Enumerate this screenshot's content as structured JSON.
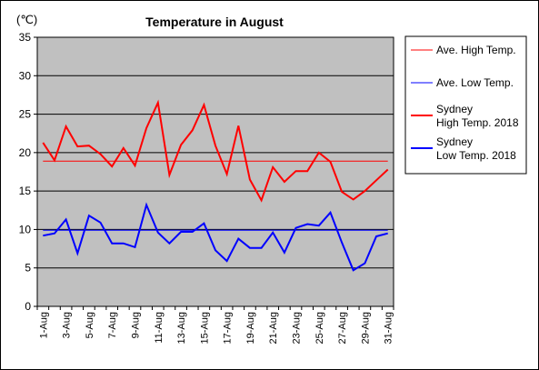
{
  "chart_data": {
    "type": "line",
    "title": "Temperature in August",
    "unit_label": "(℃)",
    "ylim": [
      0,
      35
    ],
    "y_ticks": [
      "0",
      "5",
      "10",
      "15",
      "20",
      "25",
      "30",
      "35"
    ],
    "x": [
      1,
      2,
      3,
      4,
      5,
      6,
      7,
      8,
      9,
      10,
      11,
      12,
      13,
      14,
      15,
      16,
      17,
      18,
      19,
      20,
      21,
      22,
      23,
      24,
      25,
      26,
      27,
      28,
      29,
      30,
      31
    ],
    "x_tick_labels": [
      "1-Aug",
      "3-Aug",
      "5-Aug",
      "7-Aug",
      "9-Aug",
      "11-Aug",
      "13-Aug",
      "15-Aug",
      "17-Aug",
      "19-Aug",
      "21-Aug",
      "23-Aug",
      "25-Aug",
      "27-Aug",
      "29-Aug",
      "31-Aug"
    ],
    "x_tick_days": [
      1,
      3,
      5,
      7,
      9,
      11,
      13,
      15,
      17,
      19,
      21,
      23,
      25,
      27,
      29,
      31
    ],
    "grid": true,
    "plot_background": "#c0c0c0",
    "legend_position": "right",
    "series": [
      {
        "name": "Ave. High Temp.",
        "color": "#ff0000",
        "width": 1,
        "values": [
          18.9,
          18.9,
          18.9,
          18.9,
          18.9,
          18.9,
          18.9,
          18.9,
          18.9,
          18.9,
          18.9,
          18.9,
          18.9,
          18.9,
          18.9,
          18.9,
          18.9,
          18.9,
          18.9,
          18.9,
          18.9,
          18.9,
          18.9,
          18.9,
          18.9,
          18.9,
          18.9,
          18.9,
          18.9,
          18.9,
          18.9
        ]
      },
      {
        "name": "Ave. Low Temp.",
        "color": "#0000ff",
        "width": 1,
        "values": [
          9.9,
          9.9,
          9.9,
          9.9,
          9.9,
          9.9,
          9.9,
          9.9,
          9.9,
          9.9,
          9.9,
          9.9,
          9.9,
          9.9,
          9.9,
          9.9,
          9.9,
          9.9,
          9.9,
          9.9,
          9.9,
          9.9,
          9.9,
          9.9,
          9.9,
          9.9,
          9.9,
          9.9,
          9.9,
          9.9,
          9.9
        ]
      },
      {
        "name": "Sydney\nHigh Temp. 2018",
        "color": "#ff0000",
        "width": 2,
        "values": [
          21.3,
          19.0,
          23.4,
          20.8,
          20.9,
          19.8,
          18.2,
          20.6,
          18.3,
          23.2,
          26.5,
          17.1,
          21.0,
          22.9,
          26.2,
          20.9,
          17.2,
          23.5,
          16.5,
          13.8,
          18.1,
          16.2,
          17.6,
          17.6,
          20.0,
          18.8,
          14.9,
          13.9,
          15.0,
          16.4,
          17.8
        ]
      },
      {
        "name": "Sydney\nLow Temp. 2018",
        "color": "#0000ff",
        "width": 2,
        "values": [
          9.2,
          9.5,
          11.3,
          6.9,
          11.8,
          10.9,
          8.2,
          8.2,
          7.7,
          13.2,
          9.6,
          8.2,
          9.7,
          9.7,
          10.8,
          7.3,
          5.9,
          8.8,
          7.6,
          7.6,
          9.6,
          7.0,
          10.2,
          10.7,
          10.5,
          12.2,
          8.3,
          4.7,
          5.6,
          9.1,
          9.5
        ]
      }
    ]
  }
}
